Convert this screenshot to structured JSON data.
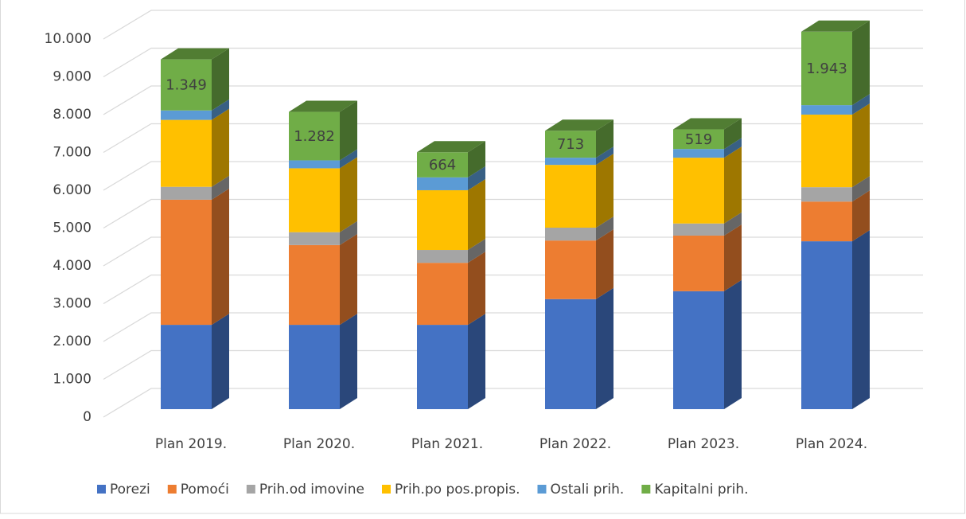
{
  "chart_data": {
    "type": "bar3d_stacked",
    "categories": [
      "Plan 2019.",
      "Plan 2020.",
      "Plan 2021.",
      "Plan 2022.",
      "Plan 2023.",
      "Plan 2024."
    ],
    "series": [
      {
        "name": "Porezi",
        "color": "#4472c4",
        "values": [
          2230,
          2230,
          2230,
          2910,
          3120,
          4440
        ]
      },
      {
        "name": "Pomoći",
        "color": "#ed7d31",
        "values": [
          3310,
          2110,
          1640,
          1550,
          1470,
          1050
        ]
      },
      {
        "name": "Prih.od imovine",
        "color": "#a5a5a5",
        "values": [
          340,
          340,
          340,
          340,
          320,
          380
        ]
      },
      {
        "name": "Prih.po pos.propis.",
        "color": "#ffc000",
        "values": [
          1770,
          1690,
          1580,
          1660,
          1740,
          1920
        ]
      },
      {
        "name": "Ostali prih.",
        "color": "#5b9bd5",
        "values": [
          250,
          210,
          340,
          190,
          230,
          250
        ]
      },
      {
        "name": "Kapitalni prih.",
        "color": "#70ad47",
        "values": [
          1349,
          1282,
          664,
          713,
          519,
          1943
        ],
        "value_labels": [
          "1.349",
          "1.282",
          "664",
          "713",
          "519",
          "1.943"
        ]
      }
    ],
    "ylim": [
      0,
      10000
    ],
    "yticks": [
      0,
      {
        "value": 1000,
        "label": "1.000"
      },
      {
        "value": 2000,
        "label": "2.000"
      },
      {
        "value": 3000,
        "label": "3.000"
      },
      {
        "value": 4000,
        "label": "4.000"
      },
      {
        "value": 5000,
        "label": "5.000"
      },
      {
        "value": 6000,
        "label": "6.000"
      },
      {
        "value": 7000,
        "label": "7.000"
      },
      {
        "value": 8000,
        "label": "8.000"
      },
      {
        "value": 9000,
        "label": "9.000"
      },
      {
        "value": 10000,
        "label": "10.000"
      }
    ],
    "grid": true,
    "legend": "bottom"
  }
}
